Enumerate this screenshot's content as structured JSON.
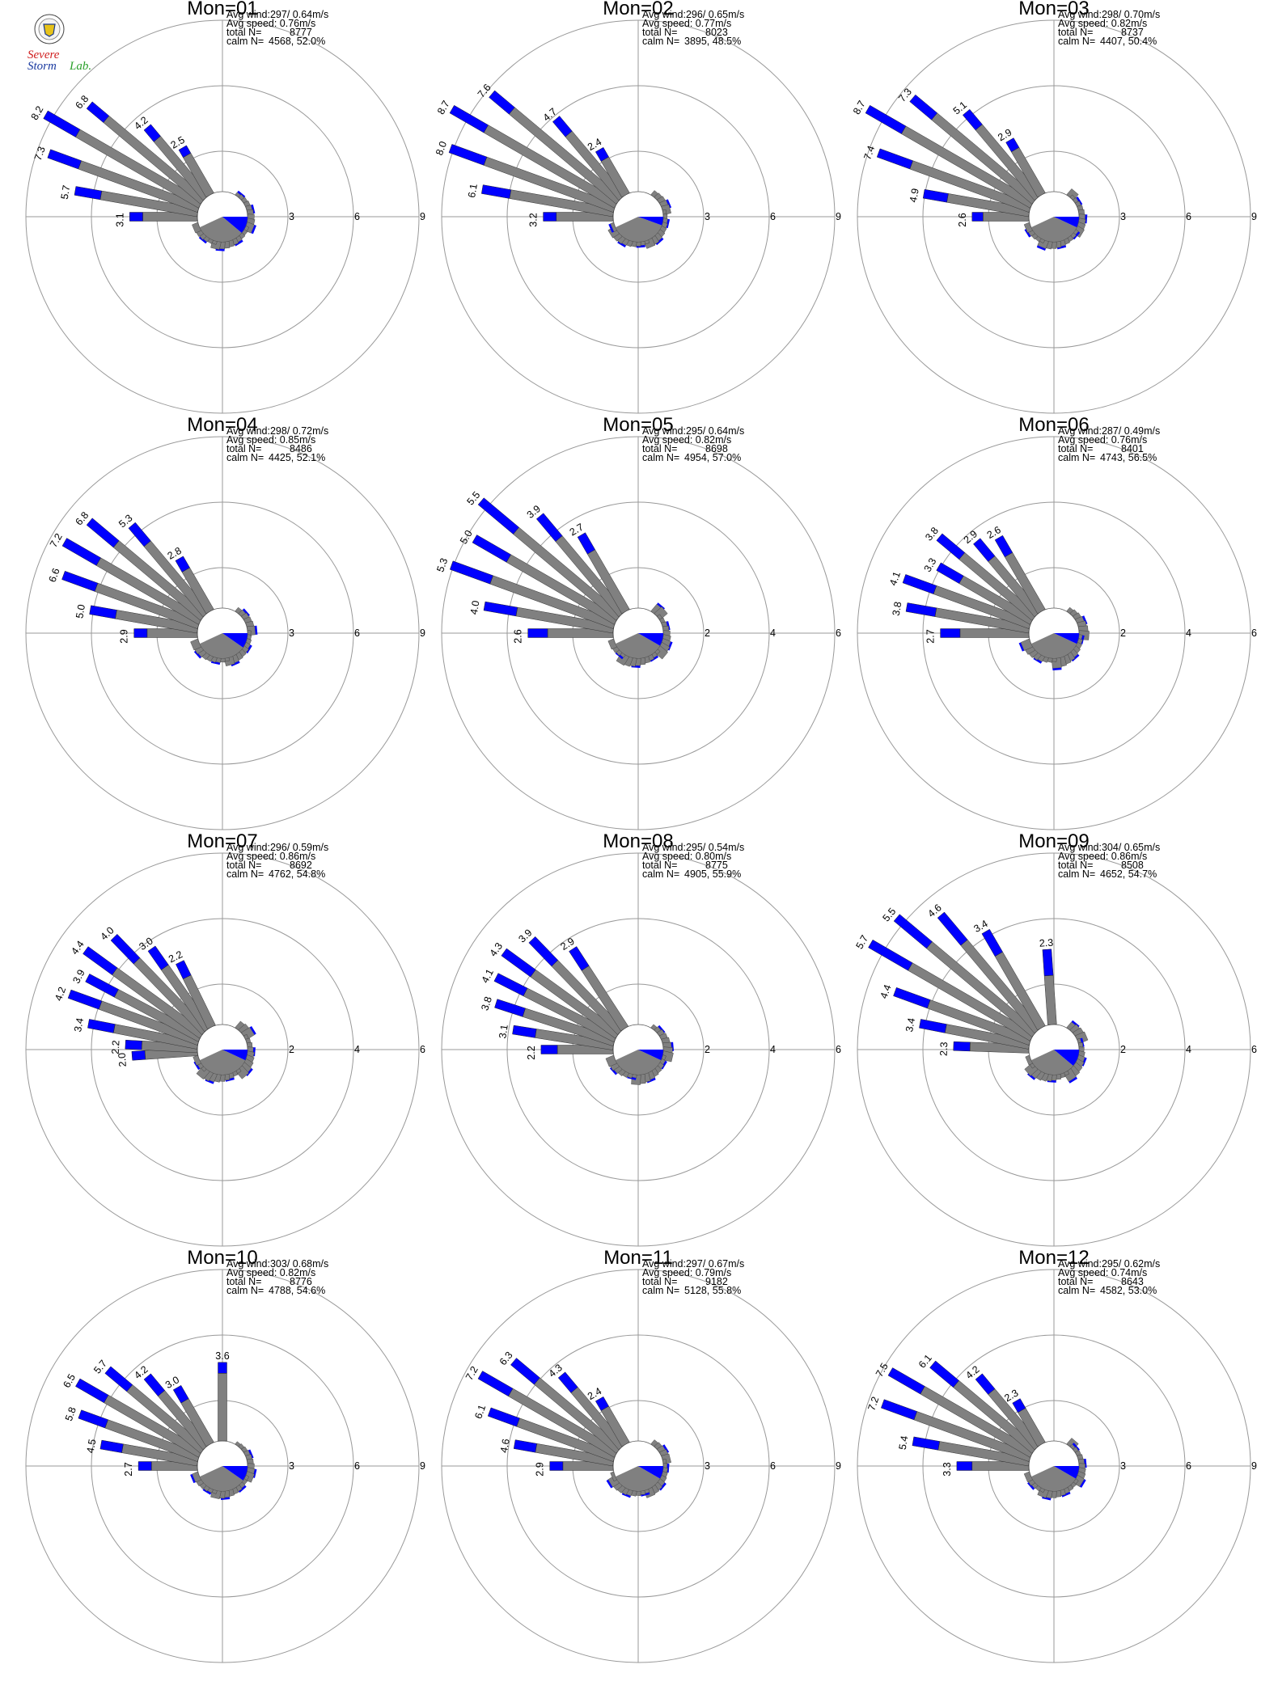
{
  "colors": {
    "fast": "#0000ff",
    "slow": "#808080",
    "ring": "#999999",
    "axis": "#999999"
  },
  "logo": {
    "text_top": "Severe",
    "text_mid": "Storm",
    "text_lab": "Lab."
  },
  "labels": {
    "avg_wind": "Avg wind:",
    "avg_speed": "Avg speed:",
    "total": "total N=",
    "calm": "calm N="
  },
  "chart_data": [
    {
      "type": "polar-bar",
      "title": "Mon=01",
      "rings": [
        "3",
        "6",
        "9"
      ],
      "rmax": 9,
      "stats": {
        "avg_wind": "297/ 0.64m/s",
        "avg_speed": "0.76m/s",
        "total_n": "8777",
        "calm": "4568,  52.0%"
      },
      "calm_direction_deg": 130,
      "spokes": [
        {
          "dir": 270,
          "total": 3.1,
          "fast": 0.6,
          "label": "3.1"
        },
        {
          "dir": 280,
          "total": 5.7,
          "fast": 1.2,
          "label": "5.7"
        },
        {
          "dir": 290,
          "total": 7.3,
          "fast": 1.5,
          "label": "7.3"
        },
        {
          "dir": 300,
          "total": 8.2,
          "fast": 1.7,
          "label": "8.2"
        },
        {
          "dir": 310,
          "total": 6.8,
          "fast": 1.0,
          "label": "6.8"
        },
        {
          "dir": 320,
          "total": 4.2,
          "fast": 0.7,
          "label": "4.2"
        },
        {
          "dir": 330,
          "total": 2.5,
          "fast": 0.4,
          "label": "2.5"
        }
      ]
    },
    {
      "type": "polar-bar",
      "title": "Mon=02",
      "rings": [
        "3",
        "6",
        "9"
      ],
      "rmax": 9,
      "stats": {
        "avg_wind": "296/ 0.65m/s",
        "avg_speed": "0.77m/s",
        "total_n": "8023",
        "calm": "3895,  48.5%"
      },
      "calm_direction_deg": 110,
      "spokes": [
        {
          "dir": 270,
          "total": 3.2,
          "fast": 0.6,
          "label": "3.2"
        },
        {
          "dir": 280,
          "total": 6.1,
          "fast": 1.3,
          "label": "6.1"
        },
        {
          "dir": 290,
          "total": 8.0,
          "fast": 1.7,
          "label": "8.0"
        },
        {
          "dir": 300,
          "total": 8.7,
          "fast": 1.8,
          "label": "8.7"
        },
        {
          "dir": 310,
          "total": 7.6,
          "fast": 1.2,
          "label": "7.6"
        },
        {
          "dir": 320,
          "total": 4.7,
          "fast": 0.9,
          "label": "4.7"
        },
        {
          "dir": 330,
          "total": 2.4,
          "fast": 0.5,
          "label": "2.4"
        }
      ]
    },
    {
      "type": "polar-bar",
      "title": "Mon=03",
      "rings": [
        "3",
        "6",
        "9"
      ],
      "rmax": 9,
      "stats": {
        "avg_wind": "298/ 0.70m/s",
        "avg_speed": "0.82m/s",
        "total_n": "8737",
        "calm": "4407,  50.4%"
      },
      "calm_direction_deg": 115,
      "spokes": [
        {
          "dir": 270,
          "total": 2.6,
          "fast": 0.5,
          "label": "2.6"
        },
        {
          "dir": 280,
          "total": 4.9,
          "fast": 1.1,
          "label": "4.9"
        },
        {
          "dir": 290,
          "total": 7.4,
          "fast": 1.6,
          "label": "7.4"
        },
        {
          "dir": 300,
          "total": 8.7,
          "fast": 1.9,
          "label": "8.7"
        },
        {
          "dir": 310,
          "total": 7.3,
          "fast": 1.3,
          "label": "7.3"
        },
        {
          "dir": 320,
          "total": 5.1,
          "fast": 0.9,
          "label": "5.1"
        },
        {
          "dir": 330,
          "total": 2.9,
          "fast": 0.5,
          "label": "2.9"
        }
      ]
    },
    {
      "type": "polar-bar",
      "title": "Mon=04",
      "rings": [
        "3",
        "6",
        "9"
      ],
      "rmax": 9,
      "stats": {
        "avg_wind": "298/ 0.72m/s",
        "avg_speed": "0.85m/s",
        "total_n": "8486",
        "calm": "4425,  52.1%"
      },
      "calm_direction_deg": 125,
      "spokes": [
        {
          "dir": 270,
          "total": 2.9,
          "fast": 0.6,
          "label": "2.9"
        },
        {
          "dir": 280,
          "total": 5.0,
          "fast": 1.2,
          "label": "5.0"
        },
        {
          "dir": 290,
          "total": 6.6,
          "fast": 1.6,
          "label": "6.6"
        },
        {
          "dir": 300,
          "total": 7.2,
          "fast": 1.8,
          "label": "7.2"
        },
        {
          "dir": 310,
          "total": 6.8,
          "fast": 1.6,
          "label": "6.8"
        },
        {
          "dir": 320,
          "total": 5.3,
          "fast": 1.1,
          "label": "5.3"
        },
        {
          "dir": 330,
          "total": 2.8,
          "fast": 0.6,
          "label": "2.8"
        }
      ]
    },
    {
      "type": "polar-bar",
      "title": "Mon=05",
      "rings": [
        "2",
        "4",
        "6"
      ],
      "rmax": 6,
      "stats": {
        "avg_wind": "295/ 0.64m/s",
        "avg_speed": "0.82m/s",
        "total_n": "8698",
        "calm": "4954,  57.0%"
      },
      "calm_direction_deg": 120,
      "spokes": [
        {
          "dir": 270,
          "total": 2.6,
          "fast": 0.6,
          "label": "2.6"
        },
        {
          "dir": 280,
          "total": 4.0,
          "fast": 1.0,
          "label": "4.0"
        },
        {
          "dir": 290,
          "total": 5.3,
          "fast": 1.3,
          "label": "5.3"
        },
        {
          "dir": 300,
          "total": 5.0,
          "fast": 1.2,
          "label": "5.0"
        },
        {
          "dir": 310,
          "total": 5.5,
          "fast": 1.4,
          "label": "5.5"
        },
        {
          "dir": 320,
          "total": 3.9,
          "fast": 0.9,
          "label": "3.9"
        },
        {
          "dir": 330,
          "total": 2.7,
          "fast": 0.6,
          "label": "2.7"
        }
      ]
    },
    {
      "type": "polar-bar",
      "title": "Mon=06",
      "rings": [
        "2",
        "4",
        "6"
      ],
      "rmax": 6,
      "stats": {
        "avg_wind": "287/ 0.49m/s",
        "avg_speed": "0.76m/s",
        "total_n": "8401",
        "calm": "4743,  56.5%"
      },
      "calm_direction_deg": 115,
      "spokes": [
        {
          "dir": 270,
          "total": 2.7,
          "fast": 0.6,
          "label": "2.7"
        },
        {
          "dir": 280,
          "total": 3.8,
          "fast": 0.9,
          "label": "3.8"
        },
        {
          "dir": 290,
          "total": 4.1,
          "fast": 1.0,
          "label": "4.1"
        },
        {
          "dir": 300,
          "total": 3.3,
          "fast": 0.8,
          "label": "3.3"
        },
        {
          "dir": 310,
          "total": 3.8,
          "fast": 0.9,
          "label": "3.8"
        },
        {
          "dir": 320,
          "total": 2.9,
          "fast": 0.7,
          "label": "2.9"
        },
        {
          "dir": 330,
          "total": 2.6,
          "fast": 0.6,
          "label": "2.6"
        }
      ]
    },
    {
      "type": "polar-bar",
      "title": "Mon=07",
      "rings": [
        "2",
        "4",
        "6"
      ],
      "rmax": 6,
      "stats": {
        "avg_wind": "296/ 0.59m/s",
        "avg_speed": "0.86m/s",
        "total_n": "8692",
        "calm": "4762,  54.8%"
      },
      "calm_direction_deg": 115,
      "spokes": [
        {
          "dir": 266,
          "total": 2.0,
          "fast": 0.4,
          "label": "2.0"
        },
        {
          "dir": 273,
          "total": 2.2,
          "fast": 0.5,
          "label": "2.2"
        },
        {
          "dir": 281,
          "total": 3.4,
          "fast": 0.8,
          "label": "3.4"
        },
        {
          "dir": 290,
          "total": 4.2,
          "fast": 1.0,
          "label": "4.2"
        },
        {
          "dir": 298,
          "total": 3.9,
          "fast": 1.0,
          "label": "3.9"
        },
        {
          "dir": 306,
          "total": 4.4,
          "fast": 1.1,
          "label": "4.4"
        },
        {
          "dir": 316,
          "total": 4.0,
          "fast": 1.0,
          "label": "4.0"
        },
        {
          "dir": 325,
          "total": 3.0,
          "fast": 0.7,
          "label": "3.0"
        },
        {
          "dir": 334,
          "total": 2.2,
          "fast": 0.5,
          "label": "2.2"
        }
      ]
    },
    {
      "type": "polar-bar",
      "title": "Mon=08",
      "rings": [
        "2",
        "4",
        "6"
      ],
      "rmax": 6,
      "stats": {
        "avg_wind": "295/ 0.54m/s",
        "avg_speed": "0.80m/s",
        "total_n": "8775",
        "calm": "4905,  55.9%"
      },
      "calm_direction_deg": 115,
      "spokes": [
        {
          "dir": 270,
          "total": 2.2,
          "fast": 0.5,
          "label": "2.2"
        },
        {
          "dir": 279,
          "total": 3.1,
          "fast": 0.7,
          "label": "3.1"
        },
        {
          "dir": 288,
          "total": 3.8,
          "fast": 0.9,
          "label": "3.8"
        },
        {
          "dir": 297,
          "total": 4.1,
          "fast": 1.0,
          "label": "4.1"
        },
        {
          "dir": 306,
          "total": 4.3,
          "fast": 1.1,
          "label": "4.3"
        },
        {
          "dir": 316,
          "total": 3.9,
          "fast": 1.0,
          "label": "3.9"
        },
        {
          "dir": 327,
          "total": 2.9,
          "fast": 0.7,
          "label": "2.9"
        }
      ]
    },
    {
      "type": "polar-bar",
      "title": "Mon=09",
      "rings": [
        "2",
        "4",
        "6"
      ],
      "rmax": 6,
      "stats": {
        "avg_wind": "304/ 0.65m/s",
        "avg_speed": "0.86m/s",
        "total_n": "8508",
        "calm": "4652,  54.7%"
      },
      "calm_direction_deg": 130,
      "spokes": [
        {
          "dir": 272,
          "total": 2.3,
          "fast": 0.5,
          "label": "2.3"
        },
        {
          "dir": 281,
          "total": 3.4,
          "fast": 0.8,
          "label": "3.4"
        },
        {
          "dir": 290,
          "total": 4.4,
          "fast": 1.1,
          "label": "4.4"
        },
        {
          "dir": 300,
          "total": 5.7,
          "fast": 1.4,
          "label": "5.7"
        },
        {
          "dir": 310,
          "total": 5.5,
          "fast": 1.3,
          "label": "5.5"
        },
        {
          "dir": 320,
          "total": 4.6,
          "fast": 1.1,
          "label": "4.6"
        },
        {
          "dir": 330,
          "total": 3.4,
          "fast": 0.8,
          "label": "3.4"
        },
        {
          "dir": 356,
          "total": 2.3,
          "fast": 0.8,
          "label": "2.3"
        }
      ]
    },
    {
      "type": "polar-bar",
      "title": "Mon=10",
      "rings": [
        "3",
        "6",
        "9"
      ],
      "rmax": 9,
      "stats": {
        "avg_wind": "303/ 0.68m/s",
        "avg_speed": "0.82m/s",
        "total_n": "8776",
        "calm": "4788,  54.6%"
      },
      "calm_direction_deg": 125,
      "spokes": [
        {
          "dir": 270,
          "total": 2.7,
          "fast": 0.6,
          "label": "2.7"
        },
        {
          "dir": 280,
          "total": 4.5,
          "fast": 1.0,
          "label": "4.5"
        },
        {
          "dir": 290,
          "total": 5.8,
          "fast": 1.3,
          "label": "5.8"
        },
        {
          "dir": 300,
          "total": 6.5,
          "fast": 1.5,
          "label": "6.5"
        },
        {
          "dir": 310,
          "total": 5.7,
          "fast": 1.3,
          "label": "5.7"
        },
        {
          "dir": 320,
          "total": 4.2,
          "fast": 1.0,
          "label": "4.2"
        },
        {
          "dir": 330,
          "total": 3.0,
          "fast": 0.7,
          "label": "3.0"
        },
        {
          "dir": 360,
          "total": 3.6,
          "fast": 0.5,
          "label": "3.6"
        }
      ]
    },
    {
      "type": "polar-bar",
      "title": "Mon=11",
      "rings": [
        "3",
        "6",
        "9"
      ],
      "rmax": 9,
      "stats": {
        "avg_wind": "297/ 0.67m/s",
        "avg_speed": "0.79m/s",
        "total_n": "9182",
        "calm": "5128,  55.8%"
      },
      "calm_direction_deg": 120,
      "spokes": [
        {
          "dir": 270,
          "total": 2.9,
          "fast": 0.6,
          "label": "2.9"
        },
        {
          "dir": 280,
          "total": 4.6,
          "fast": 1.0,
          "label": "4.6"
        },
        {
          "dir": 290,
          "total": 6.1,
          "fast": 1.4,
          "label": "6.1"
        },
        {
          "dir": 300,
          "total": 7.2,
          "fast": 1.6,
          "label": "7.2"
        },
        {
          "dir": 310,
          "total": 6.3,
          "fast": 1.4,
          "label": "6.3"
        },
        {
          "dir": 320,
          "total": 4.3,
          "fast": 0.9,
          "label": "4.3"
        },
        {
          "dir": 330,
          "total": 2.4,
          "fast": 0.5,
          "label": "2.4"
        }
      ]
    },
    {
      "type": "polar-bar",
      "title": "Mon=12",
      "rings": [
        "3",
        "6",
        "9"
      ],
      "rmax": 9,
      "stats": {
        "avg_wind": "295/ 0.62m/s",
        "avg_speed": "0.74m/s",
        "total_n": "8643",
        "calm": "4582,  53.0%"
      },
      "calm_direction_deg": 120,
      "spokes": [
        {
          "dir": 270,
          "total": 3.3,
          "fast": 0.7,
          "label": "3.3"
        },
        {
          "dir": 280,
          "total": 5.4,
          "fast": 1.2,
          "label": "5.4"
        },
        {
          "dir": 290,
          "total": 7.2,
          "fast": 1.6,
          "label": "7.2"
        },
        {
          "dir": 300,
          "total": 7.5,
          "fast": 1.7,
          "label": "7.5"
        },
        {
          "dir": 310,
          "total": 6.1,
          "fast": 1.4,
          "label": "6.1"
        },
        {
          "dir": 320,
          "total": 4.2,
          "fast": 0.9,
          "label": "4.2"
        },
        {
          "dir": 330,
          "total": 2.3,
          "fast": 0.5,
          "label": "2.3"
        }
      ]
    }
  ]
}
